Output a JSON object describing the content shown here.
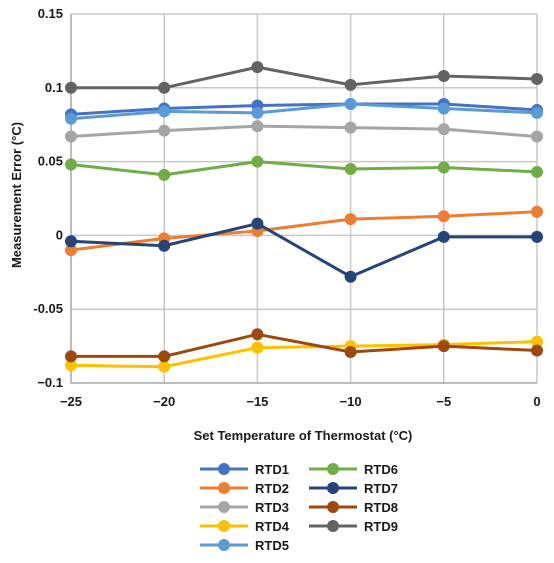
{
  "chart_data": {
    "type": "line",
    "xlabel": "Set Temperature of Thermostat (°C)",
    "ylabel": "Measurement Error (°C)",
    "x": [
      -25,
      -20,
      -15,
      -10,
      -5,
      0
    ],
    "x_ticks": [
      "−25",
      "−20",
      "−15",
      "−10",
      "−5",
      "0"
    ],
    "y_ticks": [
      "0.15",
      "0.1",
      "0.05",
      "0",
      "-0.05",
      "−0.1"
    ],
    "xlim": [
      -25,
      0
    ],
    "ylim": [
      -0.1,
      0.15
    ],
    "grid": true,
    "legend_position": "bottom",
    "series": [
      {
        "name": "RTD1",
        "color": "#4472c4",
        "values": [
          0.082,
          0.086,
          0.088,
          0.089,
          0.089,
          0.085
        ]
      },
      {
        "name": "RTD2",
        "color": "#ed7d31",
        "values": [
          -0.01,
          -0.002,
          0.003,
          0.011,
          0.013,
          0.016
        ]
      },
      {
        "name": "RTD3",
        "color": "#a5a5a5",
        "values": [
          0.067,
          0.071,
          0.074,
          0.073,
          0.072,
          0.067
        ]
      },
      {
        "name": "RTD4",
        "color": "#ffc000",
        "values": [
          -0.088,
          -0.089,
          -0.076,
          -0.075,
          -0.074,
          -0.072
        ]
      },
      {
        "name": "RTD5",
        "color": "#5b9bd5",
        "values": [
          0.079,
          0.084,
          0.083,
          0.089,
          0.086,
          0.083
        ]
      },
      {
        "name": "RTD6",
        "color": "#70ad47",
        "values": [
          0.048,
          0.041,
          0.05,
          0.045,
          0.046,
          0.043
        ]
      },
      {
        "name": "RTD7",
        "color": "#264478",
        "values": [
          -0.004,
          -0.007,
          0.008,
          -0.028,
          -0.001,
          -0.001
        ]
      },
      {
        "name": "RTD8",
        "color": "#9e480e",
        "values": [
          -0.082,
          -0.082,
          -0.067,
          -0.079,
          -0.075,
          -0.078
        ]
      },
      {
        "name": "RTD9",
        "color": "#636363",
        "values": [
          0.1,
          0.1,
          0.114,
          0.102,
          0.108,
          0.106
        ]
      }
    ]
  }
}
